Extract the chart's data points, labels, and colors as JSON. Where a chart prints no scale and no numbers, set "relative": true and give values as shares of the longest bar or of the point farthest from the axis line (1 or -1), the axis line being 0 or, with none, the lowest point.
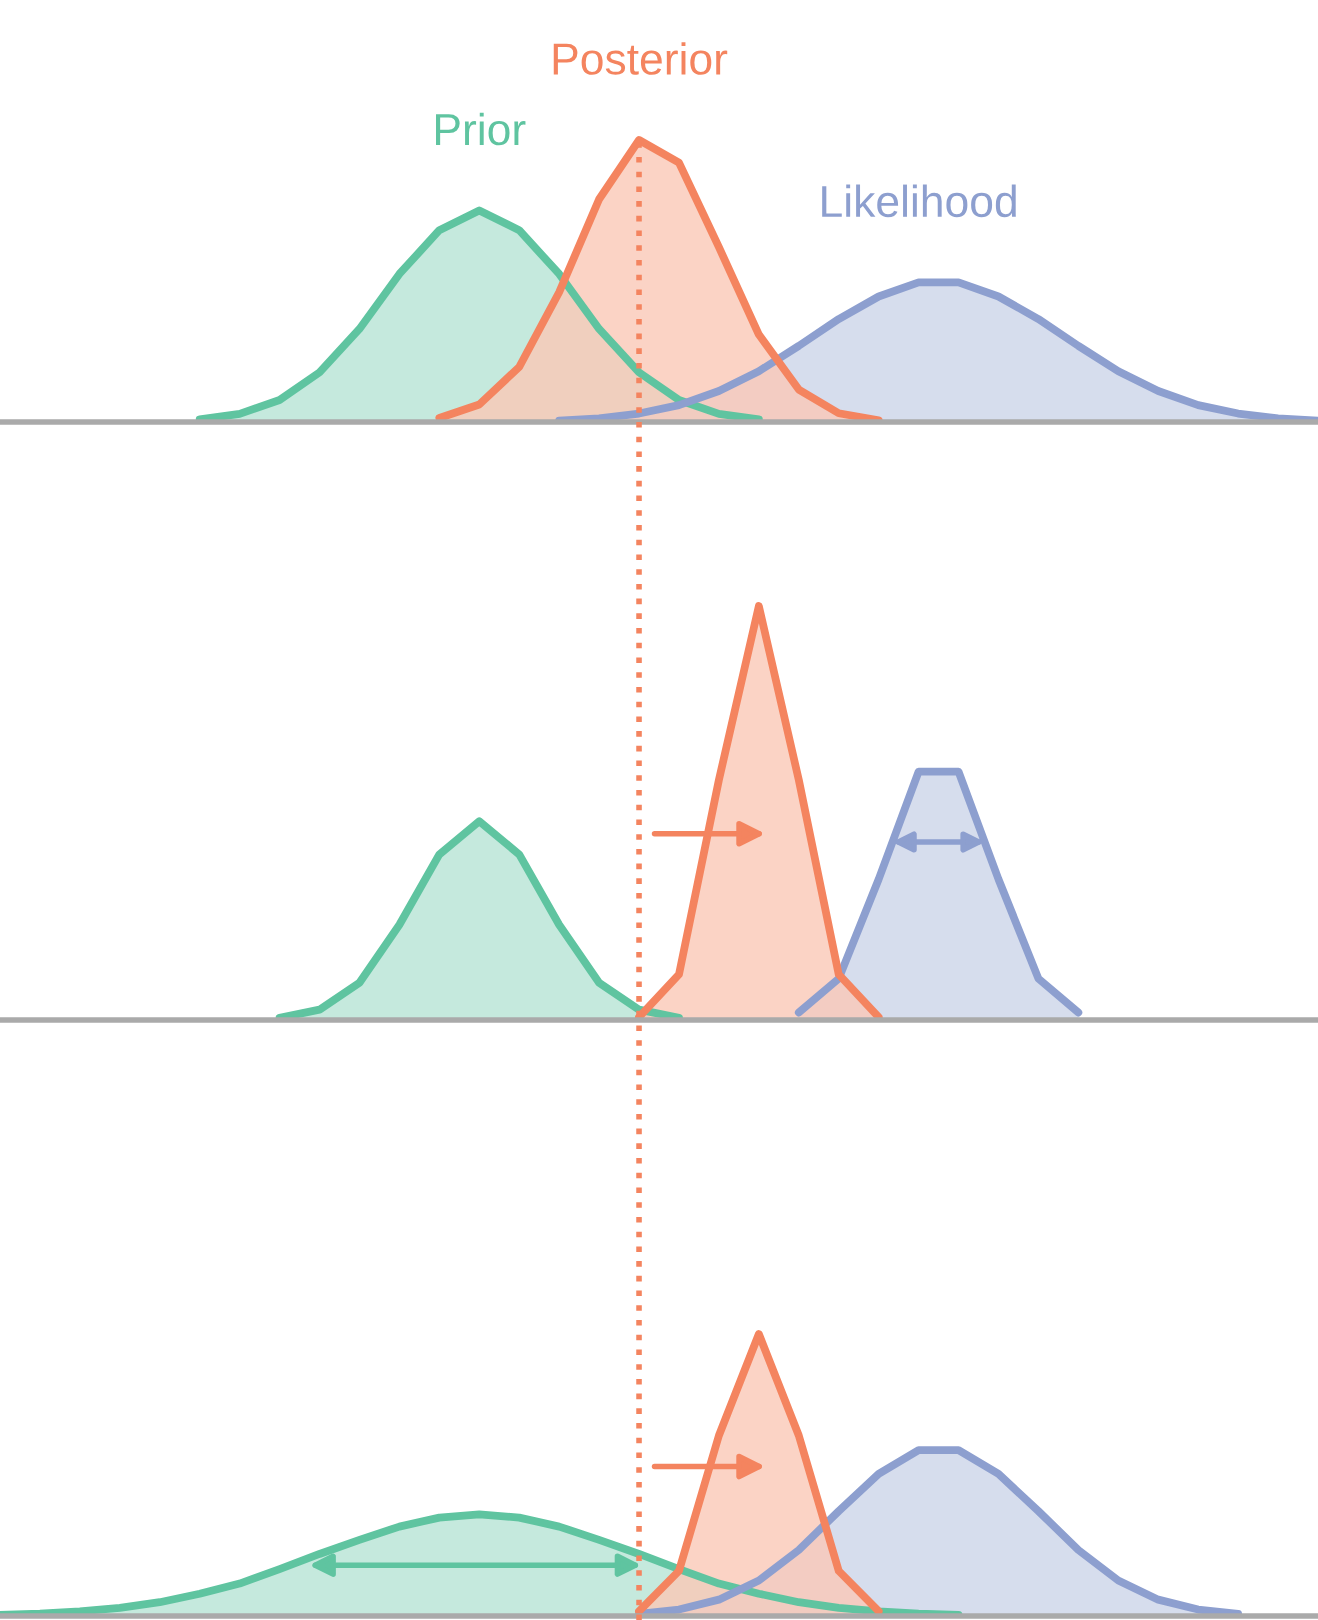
{
  "chart_data": [
    {
      "type": "area",
      "relative": true,
      "categories": [
        null,
        null,
        null,
        null,
        null,
        null,
        null,
        null,
        null,
        null,
        null,
        null,
        null,
        null,
        null,
        null,
        null,
        null,
        null,
        null,
        null,
        null,
        null,
        null,
        null,
        null,
        null,
        null,
        null,
        null,
        null,
        null,
        null,
        null
      ],
      "series": [
        {
          "name": "Prior",
          "color": "#5fc4a0",
          "values": [
            null,
            null,
            null,
            null,
            null,
            0.009,
            0.029,
            0.078,
            0.176,
            0.33,
            0.525,
            0.68,
            0.75,
            0.68,
            0.525,
            0.33,
            0.176,
            0.078,
            0.029,
            0.009,
            null,
            null,
            null,
            null,
            null,
            null,
            null,
            null,
            null,
            null,
            null,
            null,
            null,
            null
          ]
        },
        {
          "name": "Likelihood",
          "color": "#8d9fcf",
          "values": [
            null,
            null,
            null,
            null,
            null,
            null,
            null,
            null,
            null,
            null,
            null,
            null,
            null,
            null,
            0.005,
            0.013,
            0.03,
            0.06,
            0.11,
            0.18,
            0.27,
            0.365,
            0.445,
            0.495,
            0.495,
            0.445,
            0.365,
            0.27,
            0.18,
            0.11,
            0.06,
            0.03,
            0.013,
            0.005
          ]
        },
        {
          "name": "Posterior",
          "color": "#f4845f",
          "values": [
            null,
            null,
            null,
            null,
            null,
            null,
            null,
            null,
            null,
            null,
            null,
            0.014,
            0.062,
            0.195,
            0.46,
            0.79,
            1,
            0.92,
            0.62,
            0.31,
            0.115,
            0.031,
            0.006,
            null,
            null,
            null,
            null,
            null,
            null,
            null,
            null,
            null,
            null,
            null
          ]
        }
      ]
    },
    {
      "type": "area",
      "relative": true,
      "categories": [
        null,
        null,
        null,
        null,
        null,
        null,
        null,
        null,
        null,
        null,
        null,
        null,
        null,
        null,
        null,
        null,
        null,
        null,
        null,
        null,
        null,
        null,
        null,
        null,
        null,
        null,
        null,
        null,
        null,
        null,
        null,
        null,
        null,
        null
      ],
      "series": [
        {
          "color": "#5fc4a0",
          "values": [
            null,
            null,
            null,
            null,
            null,
            null,
            null,
            0.005,
            0.025,
            0.09,
            0.23,
            0.4,
            0.48,
            0.4,
            0.23,
            0.09,
            0.025,
            0.005,
            null,
            null,
            null,
            null,
            null,
            null,
            null,
            null,
            null,
            null,
            null,
            null,
            null,
            null,
            null,
            null
          ]
        },
        {
          "color": "#8d9fcf",
          "values": [
            null,
            null,
            null,
            null,
            null,
            null,
            null,
            null,
            null,
            null,
            null,
            null,
            null,
            null,
            null,
            null,
            null,
            null,
            null,
            null,
            0.018,
            0.1,
            0.34,
            0.6,
            0.6,
            0.34,
            0.1,
            0.018,
            null,
            null,
            null,
            null,
            null,
            null
          ]
        },
        {
          "color": "#f4845f",
          "values": [
            null,
            null,
            null,
            null,
            null,
            null,
            null,
            null,
            null,
            null,
            null,
            null,
            null,
            null,
            null,
            null,
            0.007,
            0.11,
            0.58,
            1,
            0.58,
            0.11,
            0.007,
            null,
            null,
            null,
            null,
            null,
            null,
            null,
            null,
            null,
            null,
            null
          ]
        }
      ]
    },
    {
      "type": "area",
      "relative": true,
      "categories": [
        null,
        null,
        null,
        null,
        null,
        null,
        null,
        null,
        null,
        null,
        null,
        null,
        null,
        null,
        null,
        null,
        null,
        null,
        null,
        null,
        null,
        null,
        null,
        null,
        null,
        null,
        null,
        null,
        null,
        null,
        null,
        null,
        null,
        null
      ],
      "series": [
        {
          "color": "#5fc4a0",
          "values": [
            0.004,
            0.008,
            0.016,
            0.029,
            0.049,
            0.079,
            0.115,
            0.166,
            0.22,
            0.27,
            0.317,
            0.349,
            0.36,
            0.349,
            0.317,
            0.27,
            0.22,
            0.166,
            0.115,
            0.079,
            0.049,
            0.029,
            0.016,
            0.008,
            0.004,
            null,
            null,
            null,
            null,
            null,
            null,
            null,
            null,
            null
          ]
        },
        {
          "color": "#8d9fcf",
          "values": [
            null,
            null,
            null,
            null,
            null,
            null,
            null,
            null,
            null,
            null,
            null,
            null,
            null,
            null,
            null,
            null,
            0.008,
            0.023,
            0.058,
            0.126,
            0.234,
            0.372,
            0.504,
            0.588,
            0.588,
            0.504,
            0.372,
            0.234,
            0.126,
            0.058,
            0.023,
            0.008,
            null,
            null
          ]
        },
        {
          "color": "#f4845f",
          "values": [
            null,
            null,
            null,
            null,
            null,
            null,
            null,
            null,
            null,
            null,
            null,
            null,
            null,
            null,
            null,
            null,
            0.017,
            0.16,
            0.64,
            1,
            0.64,
            0.16,
            0.017,
            null,
            null,
            null,
            null,
            null,
            null,
            null,
            null,
            null,
            null,
            null
          ]
        }
      ]
    }
  ]
}
